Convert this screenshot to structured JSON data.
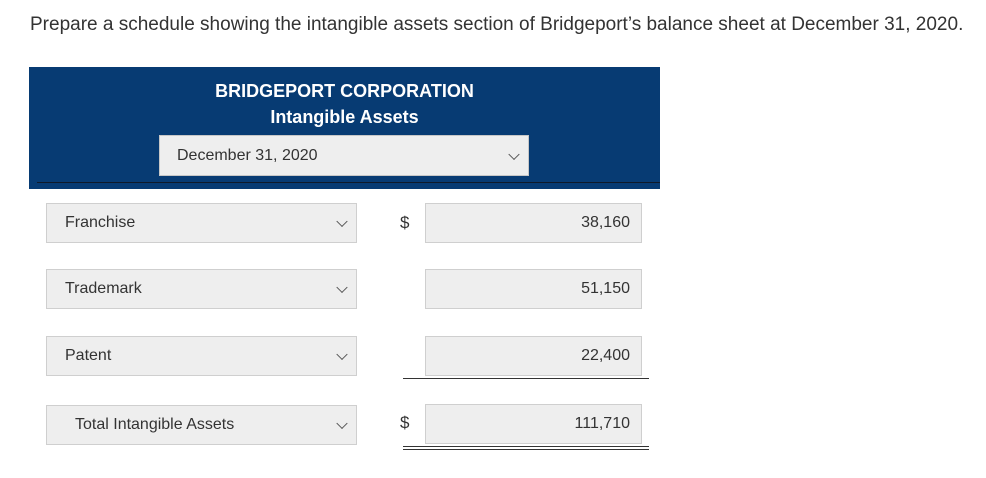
{
  "instruction": "Prepare a schedule showing the intangible assets section of Bridgeport’s balance sheet at December 31, 2020.",
  "header": {
    "company": "BRIDGEPORT CORPORATION",
    "statement": "Intangible Assets",
    "date_select": "December 31, 2020"
  },
  "rows": [
    {
      "label": "Franchise",
      "currency": "$",
      "amount": "38,160"
    },
    {
      "label": "Trademark",
      "currency": "",
      "amount": "51,150"
    },
    {
      "label": "Patent",
      "currency": "",
      "amount": "22,400"
    },
    {
      "label": "Total Intangible Assets",
      "currency": "$",
      "amount": "111,710"
    }
  ]
}
